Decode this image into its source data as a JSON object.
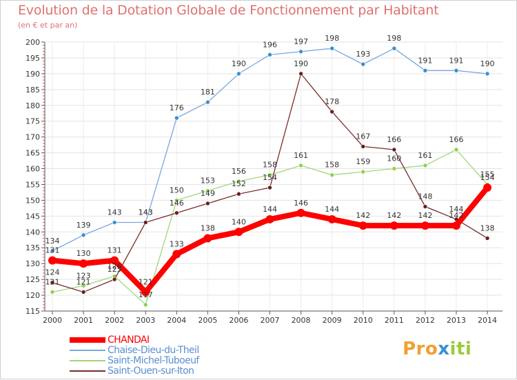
{
  "chart_data": {
    "type": "line",
    "title": "Evolution de la Dotation Globale de Fonctionnement par Habitant",
    "subtitle": "(en € et par an)",
    "xlabel": "",
    "ylabel": "",
    "ylim": [
      115,
      200
    ],
    "y_ticks": [
      115,
      120,
      125,
      130,
      135,
      140,
      145,
      150,
      155,
      160,
      165,
      170,
      175,
      180,
      185,
      190,
      195,
      200
    ],
    "x": [
      "2000",
      "2001",
      "2002",
      "2003",
      "2004",
      "2005",
      "2006",
      "2007",
      "2008",
      "2009",
      "2010",
      "2011",
      "2012",
      "2013",
      "2014"
    ],
    "series": [
      {
        "name": "CHANDAI",
        "color": "#ff0000",
        "line_color": "#ff0000",
        "marker_color": "#ff0000",
        "thick": true,
        "values": [
          131,
          130,
          131,
          121,
          133,
          138,
          140,
          144,
          146,
          144,
          142,
          142,
          142,
          142,
          154
        ]
      },
      {
        "name": "Chaise-Dieu-du-Theil",
        "color": "#5b8fcf",
        "line_color": "#78a7dd",
        "marker_color": "#3a8fd0",
        "thick": false,
        "values": [
          134,
          139,
          143,
          143,
          176,
          181,
          190,
          196,
          197,
          198,
          193,
          198,
          191,
          191,
          190
        ]
      },
      {
        "name": "Saint-Michel-Tuboeuf",
        "color": "#5b8fcf",
        "line_color": "#9fd67a",
        "marker_color": "#8fd24a",
        "thick": false,
        "values": [
          121,
          123,
          126,
          117,
          150,
          153,
          156,
          158,
          161,
          158,
          159,
          160,
          161,
          166,
          155
        ]
      },
      {
        "name": "Saint-Ouen-sur-Iton",
        "color": "#5b8fcf",
        "line_color": "#7a2a2a",
        "marker_color": "#6b1d1d",
        "thick": false,
        "values": [
          124,
          121,
          125,
          143,
          146,
          149,
          152,
          154,
          190,
          178,
          167,
          166,
          148,
          144,
          138
        ]
      }
    ]
  },
  "logo": {
    "part1": "Pro",
    "part2": "x",
    "part3": "iti"
  }
}
